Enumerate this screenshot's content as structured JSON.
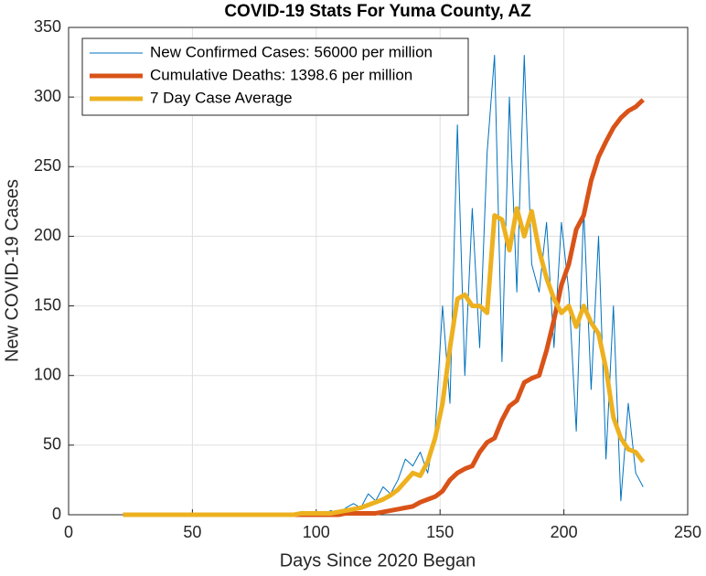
{
  "chart_data": {
    "type": "line",
    "title": "COVID-19 Stats For Yuma County, AZ",
    "x_label": "Days Since 2020 Began",
    "y_label": "New COVID-19 Cases",
    "x": [
      22,
      25,
      28,
      31,
      34,
      37,
      40,
      43,
      46,
      49,
      52,
      55,
      58,
      61,
      64,
      67,
      70,
      73,
      76,
      79,
      82,
      85,
      88,
      91,
      94,
      97,
      100,
      103,
      106,
      109,
      112,
      115,
      118,
      121,
      124,
      127,
      130,
      133,
      136,
      139,
      142,
      145,
      148,
      151,
      154,
      157,
      160,
      163,
      166,
      169,
      172,
      175,
      178,
      181,
      184,
      187,
      190,
      193,
      196,
      199,
      202,
      205,
      208,
      211,
      214,
      217,
      220,
      223,
      226,
      229,
      232
    ],
    "series": [
      {
        "name": "New Confirmed Cases: 56000 per million",
        "color": "#0072bd",
        "width": 1,
        "values": [
          0,
          0,
          0,
          0,
          0,
          0,
          0,
          0,
          0,
          0,
          0,
          0,
          0,
          0,
          0,
          0,
          0,
          0,
          0,
          0,
          0,
          0,
          0,
          0,
          2,
          0,
          0,
          1,
          3,
          0,
          5,
          8,
          5,
          15,
          10,
          20,
          15,
          25,
          40,
          35,
          45,
          30,
          60,
          150,
          80,
          280,
          100,
          220,
          120,
          260,
          330,
          110,
          300,
          160,
          330,
          180,
          160,
          210,
          120,
          210,
          160,
          60,
          220,
          90,
          200,
          40,
          150,
          10,
          80,
          30,
          20
        ]
      },
      {
        "name": "Cumulative Deaths: 1398.6 per million",
        "color": "#d95319",
        "width": 5,
        "values": [
          0,
          0,
          0,
          0,
          0,
          0,
          0,
          0,
          0,
          0,
          0,
          0,
          0,
          0,
          0,
          0,
          0,
          0,
          0,
          0,
          0,
          0,
          0,
          0,
          0,
          0,
          0,
          0,
          0,
          0,
          1,
          1,
          1,
          1,
          1,
          2,
          3,
          4,
          5,
          6,
          9,
          11,
          13,
          17,
          25,
          30,
          33,
          35,
          45,
          52,
          55,
          68,
          78,
          82,
          95,
          98,
          100,
          118,
          140,
          165,
          180,
          205,
          215,
          240,
          257,
          268,
          278,
          285,
          290,
          293,
          298
        ]
      },
      {
        "name": "7 Day Case Average",
        "color": "#edb120",
        "width": 5,
        "values": [
          0,
          0,
          0,
          0,
          0,
          0,
          0,
          0,
          0,
          0,
          0,
          0,
          0,
          0,
          0,
          0,
          0,
          0,
          0,
          0,
          0,
          0,
          0,
          0,
          1,
          1,
          1,
          1,
          1,
          2,
          3,
          4,
          5,
          7,
          9,
          11,
          14,
          18,
          24,
          30,
          28,
          38,
          55,
          80,
          120,
          155,
          158,
          150,
          150,
          145,
          215,
          212,
          190,
          220,
          200,
          218,
          190,
          170,
          155,
          145,
          150,
          135,
          150,
          138,
          130,
          105,
          70,
          55,
          47,
          45,
          38
        ]
      }
    ],
    "xlim": [
      0,
      250
    ],
    "xticks": [
      0,
      50,
      100,
      150,
      200,
      250
    ],
    "ylim": [
      0,
      350
    ],
    "yticks": [
      0,
      50,
      100,
      150,
      200,
      250,
      300,
      350
    ],
    "grid": true,
    "legend": "upper-left"
  }
}
